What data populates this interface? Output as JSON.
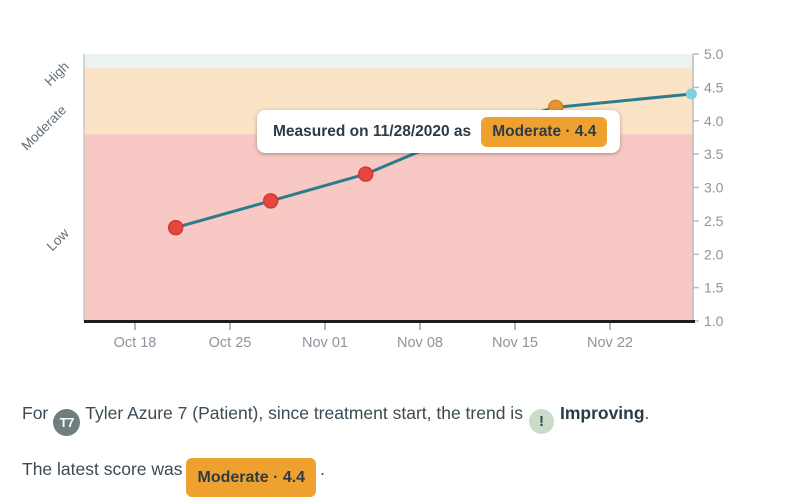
{
  "colors": {
    "accent_orange": "#efa12f",
    "line_teal": "#2b7d8d",
    "band_high": "#edf3f0",
    "band_moderate": "#fbe3c5",
    "band_low": "#f8c8c4",
    "marker_low": "#e8453e",
    "marker_low_stroke": "#d03a34",
    "marker_moderate": "#e69434",
    "marker_moderate_stroke": "#cf8526",
    "marker_latest": "#7dd0e0",
    "avatar_bg": "#6f7e7e",
    "trend_icon_bg": "#c9dbc9",
    "axis_label_gray": "#8e939c",
    "bottom_axis_black": "#1b1d20"
  },
  "chart_data": {
    "type": "line",
    "title": "",
    "xlabel": "",
    "ylabel": "",
    "ylim": [
      1.0,
      5.0
    ],
    "grid": false,
    "y_axis_side": "right",
    "y_ticks": [
      "5.0",
      "4.5",
      "4.0",
      "3.5",
      "3.0",
      "2.5",
      "2.0",
      "1.5",
      "1.0"
    ],
    "x_ticks": [
      {
        "label": "Oct 18",
        "date": "2020-10-18"
      },
      {
        "label": "Oct 25",
        "date": "2020-10-25"
      },
      {
        "label": "Nov 01",
        "date": "2020-11-01"
      },
      {
        "label": "Nov 08",
        "date": "2020-11-08"
      },
      {
        "label": "Nov 15",
        "date": "2020-11-15"
      },
      {
        "label": "Nov 22",
        "date": "2020-11-22"
      }
    ],
    "bands": [
      {
        "label": "High",
        "from": 4.8,
        "to": 5.0
      },
      {
        "label": "Moderate",
        "from": 3.8,
        "to": 4.8
      },
      {
        "label": "Low",
        "from": 1.0,
        "to": 3.8
      }
    ],
    "series": [
      {
        "name": "score",
        "points": [
          {
            "date": "2020-10-21",
            "value": 2.4,
            "severity": "low"
          },
          {
            "date": "2020-10-28",
            "value": 2.8,
            "severity": "low"
          },
          {
            "date": "2020-11-04",
            "value": 3.2,
            "severity": "low"
          },
          {
            "date": "2020-11-11",
            "value": 3.8,
            "severity": "moderate",
            "occluded_by_tooltip": true
          },
          {
            "date": "2020-11-18",
            "value": 4.2,
            "severity": "moderate"
          },
          {
            "date": "2020-11-28",
            "value": 4.4,
            "severity": "moderate",
            "highlighted": true
          }
        ]
      }
    ]
  },
  "tooltip": {
    "prefix": "Measured on 11/28/2020 as",
    "chip": "Moderate · 4.4"
  },
  "summary": {
    "line1": {
      "prefix": "For",
      "avatar_initials": "T7",
      "middle": "Tyler Azure 7 (Patient), since treatment start, the trend is",
      "trend_icon_glyph": "!",
      "trend_label": "Improving",
      "suffix": "."
    },
    "line2": {
      "prefix": "The latest score was",
      "chip": "Moderate · 4.4",
      "suffix": "."
    }
  }
}
